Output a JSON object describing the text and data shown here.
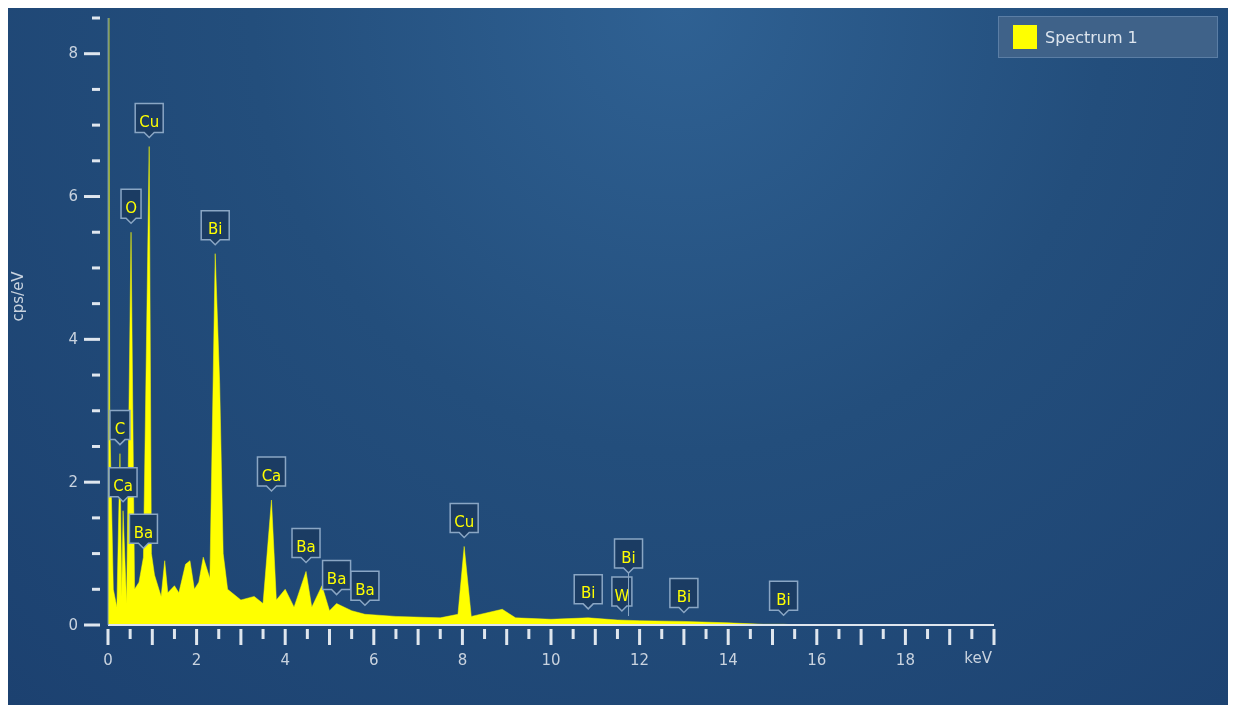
{
  "chart_data": {
    "type": "area",
    "xlabel": "keV",
    "ylabel": "cps/eV",
    "x": [
      0,
      0.02,
      0.04,
      0.12,
      0.2,
      0.27,
      0.31,
      0.34,
      0.42,
      0.52,
      0.6,
      0.7,
      0.8,
      0.93,
      0.98,
      1.05,
      1.2,
      1.28,
      1.35,
      1.5,
      1.6,
      1.75,
      1.85,
      1.95,
      2.05,
      2.15,
      2.3,
      2.42,
      2.52,
      2.6,
      2.7,
      3.0,
      3.3,
      3.5,
      3.69,
      3.8,
      4.0,
      4.2,
      4.47,
      4.6,
      4.83,
      5.0,
      5.16,
      5.5,
      5.8,
      6.5,
      7.5,
      7.9,
      8.04,
      8.2,
      8.9,
      9.2,
      10.0,
      10.84,
      11.5,
      12.0,
      13.0,
      14.0,
      14.8,
      15.25,
      15.6
    ],
    "series": [
      {
        "name": "Spectrum 1",
        "color": "#ffff00",
        "values": [
          0,
          8.5,
          2.9,
          0.5,
          0.25,
          2.4,
          0.4,
          1.6,
          0.3,
          5.5,
          0.5,
          0.6,
          0.95,
          6.7,
          1.0,
          0.7,
          0.4,
          0.9,
          0.45,
          0.55,
          0.45,
          0.85,
          0.9,
          0.5,
          0.6,
          0.95,
          0.65,
          5.2,
          3.4,
          1.0,
          0.5,
          0.35,
          0.4,
          0.3,
          1.75,
          0.35,
          0.5,
          0.25,
          0.75,
          0.25,
          0.55,
          0.2,
          0.3,
          0.2,
          0.15,
          0.12,
          0.1,
          0.15,
          1.1,
          0.12,
          0.22,
          0.1,
          0.08,
          0.1,
          0.07,
          0.06,
          0.05,
          0.03,
          0.01,
          0.01,
          0
        ]
      }
    ],
    "xlim": [
      0,
      20
    ],
    "xticks": [
      0,
      {
        "value": 0.5,
        "label": null
      },
      {
        "value": 1,
        "label": null
      },
      {
        "value": 1.5,
        "label": null
      },
      2,
      {
        "value": 2.5,
        "label": null
      },
      {
        "value": 3,
        "label": null
      },
      {
        "value": 3.5,
        "label": null
      },
      4,
      {
        "value": 4.5,
        "label": null
      },
      {
        "value": 5,
        "label": null
      },
      {
        "value": 5.5,
        "label": null
      },
      6,
      {
        "value": 6.5,
        "label": null
      },
      {
        "value": 7,
        "label": null
      },
      {
        "value": 7.5,
        "label": null
      },
      8,
      {
        "value": 8.5,
        "label": null
      },
      {
        "value": 9,
        "label": null
      },
      {
        "value": 9.5,
        "label": null
      },
      10,
      {
        "value": 10.5,
        "label": null
      },
      {
        "value": 11,
        "label": null
      },
      {
        "value": 11.5,
        "label": null
      },
      12,
      {
        "value": 12.5,
        "label": null
      },
      {
        "value": 13,
        "label": null
      },
      {
        "value": 13.5,
        "label": null
      },
      14,
      {
        "value": 14.5,
        "label": null
      },
      {
        "value": 15,
        "label": null
      },
      {
        "value": 15.5,
        "label": null
      },
      16,
      {
        "value": 16.5,
        "label": null
      },
      {
        "value": 17,
        "label": null
      },
      {
        "value": 17.5,
        "label": null
      },
      18,
      {
        "value": 18.5,
        "label": null
      },
      {
        "value": 19,
        "label": null
      },
      {
        "value": 19.5,
        "label": null
      },
      {
        "value": 20,
        "label": null
      }
    ],
    "ylim": [
      0,
      8.5
    ],
    "yticks": [
      0,
      {
        "value": 0.5,
        "label": null
      },
      {
        "value": 1,
        "label": null
      },
      {
        "value": 1.5,
        "label": null
      },
      2,
      {
        "value": 2.5,
        "label": null
      },
      {
        "value": 3,
        "label": null
      },
      {
        "value": 3.5,
        "label": null
      },
      4,
      {
        "value": 4.5,
        "label": null
      },
      {
        "value": 5,
        "label": null
      },
      {
        "value": 5.5,
        "label": null
      },
      6,
      {
        "value": 6.5,
        "label": null
      },
      {
        "value": 7,
        "label": null
      },
      {
        "value": 7.5,
        "label": null
      },
      8,
      {
        "value": 8.5,
        "label": null
      }
    ],
    "grid": false,
    "legend": "top right",
    "annotations": [
      {
        "text": "C",
        "x": 0.27,
        "y": 2.4
      },
      {
        "text": "Ca",
        "x": 0.34,
        "y": 1.6
      },
      {
        "text": "O",
        "x": 0.52,
        "y": 5.5
      },
      {
        "text": "Ba",
        "x": 0.8,
        "y": 0.95
      },
      {
        "text": "Cu",
        "x": 0.93,
        "y": 6.7
      },
      {
        "text": "Bi",
        "x": 2.42,
        "y": 5.2
      },
      {
        "text": "Ca",
        "x": 3.69,
        "y": 1.75
      },
      {
        "text": "Ba",
        "x": 4.47,
        "y": 0.75
      },
      {
        "text": "Ba",
        "x": 5.16,
        "y": 0.3
      },
      {
        "text": "Ba",
        "x": 5.8,
        "y": 0.15
      },
      {
        "text": "Cu",
        "x": 8.04,
        "y": 1.1
      },
      {
        "text": "Bi",
        "x": 10.84,
        "y": 0.1
      },
      {
        "text": "W",
        "x": 11.6,
        "y": 0.07
      },
      {
        "text": "Bi",
        "x": 11.75,
        "y": 0.07
      },
      {
        "text": "Bi",
        "x": 13.0,
        "y": 0.05
      },
      {
        "text": "Bi",
        "x": 15.25,
        "y": 0.01
      }
    ]
  }
}
